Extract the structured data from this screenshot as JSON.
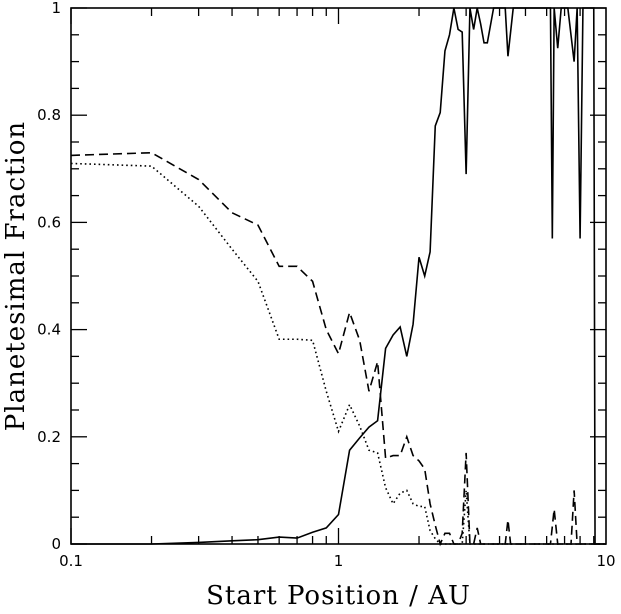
{
  "chart_data": {
    "type": "line",
    "xlabel": "Start Position / AU",
    "ylabel": "Planetesimal Fraction",
    "x_scale": "log",
    "xlim": [
      0.1,
      10
    ],
    "ylim": [
      0,
      1
    ],
    "x_ticks": [
      {
        "value": 0.1,
        "label": "0.1"
      },
      {
        "value": 1,
        "label": "1"
      },
      {
        "value": 10,
        "label": "10"
      }
    ],
    "y_ticks": [
      {
        "value": 0,
        "label": "0"
      },
      {
        "value": 0.2,
        "label": "0.2"
      },
      {
        "value": 0.4,
        "label": "0.4"
      },
      {
        "value": 0.6,
        "label": "0.6"
      },
      {
        "value": 0.8,
        "label": "0.8"
      },
      {
        "value": 1,
        "label": "1"
      }
    ],
    "grid": false,
    "legend": false,
    "series": [
      {
        "style": "solid",
        "points": [
          [
            0.1,
            0
          ],
          [
            0.2,
            0
          ],
          [
            0.3,
            0.003
          ],
          [
            0.4,
            0.006
          ],
          [
            0.5,
            0.008
          ],
          [
            0.6,
            0.013
          ],
          [
            0.7,
            0.011
          ],
          [
            0.8,
            0.022
          ],
          [
            0.9,
            0.03
          ],
          [
            1.0,
            0.055
          ],
          [
            1.1,
            0.175
          ],
          [
            1.2,
            0.198
          ],
          [
            1.3,
            0.218
          ],
          [
            1.4,
            0.23
          ],
          [
            1.5,
            0.365
          ],
          [
            1.6,
            0.39
          ],
          [
            1.7,
            0.405
          ],
          [
            1.8,
            0.35
          ],
          [
            1.9,
            0.41
          ],
          [
            2.0,
            0.535
          ],
          [
            2.1,
            0.5
          ],
          [
            2.2,
            0.545
          ],
          [
            2.3,
            0.78
          ],
          [
            2.4,
            0.805
          ],
          [
            2.5,
            0.92
          ],
          [
            2.6,
            0.95
          ],
          [
            2.7,
            1.0
          ],
          [
            2.8,
            0.96
          ],
          [
            2.9,
            0.955
          ],
          [
            3.0,
            0.69
          ],
          [
            3.1,
            1.0
          ],
          [
            3.2,
            0.96
          ],
          [
            3.3,
            1.0
          ],
          [
            3.4,
            0.97
          ],
          [
            3.5,
            0.935
          ],
          [
            3.6,
            0.935
          ],
          [
            3.8,
            1.0
          ],
          [
            4.2,
            1.0
          ],
          [
            4.3,
            0.91
          ],
          [
            4.5,
            1.0
          ],
          [
            6.2,
            1.0
          ],
          [
            6.3,
            0.57
          ],
          [
            6.4,
            1.0
          ],
          [
            6.6,
            0.925
          ],
          [
            6.8,
            1.0
          ],
          [
            7.2,
            1.0
          ],
          [
            7.6,
            0.9
          ],
          [
            7.8,
            1.0
          ],
          [
            8.0,
            0.57
          ],
          [
            8.2,
            1.0
          ],
          [
            9.0,
            1.0
          ],
          [
            9.1,
            0.0
          ],
          [
            10.0,
            0.0
          ]
        ]
      },
      {
        "style": "dashed",
        "points": [
          [
            0.1,
            0.725
          ],
          [
            0.2,
            0.73
          ],
          [
            0.3,
            0.68
          ],
          [
            0.4,
            0.618
          ],
          [
            0.5,
            0.595
          ],
          [
            0.6,
            0.518
          ],
          [
            0.7,
            0.518
          ],
          [
            0.8,
            0.49
          ],
          [
            0.9,
            0.4
          ],
          [
            1.0,
            0.355
          ],
          [
            1.1,
            0.432
          ],
          [
            1.2,
            0.38
          ],
          [
            1.3,
            0.285
          ],
          [
            1.4,
            0.34
          ],
          [
            1.5,
            0.16
          ],
          [
            1.6,
            0.165
          ],
          [
            1.7,
            0.165
          ],
          [
            1.8,
            0.2
          ],
          [
            1.9,
            0.165
          ],
          [
            2.0,
            0.155
          ],
          [
            2.1,
            0.14
          ],
          [
            2.2,
            0.075
          ],
          [
            2.3,
            0.035
          ],
          [
            2.4,
            0.0
          ],
          [
            2.5,
            0.02
          ],
          [
            2.6,
            0.02
          ],
          [
            2.7,
            0.0
          ],
          [
            2.8,
            0.0
          ],
          [
            2.9,
            0.02
          ],
          [
            3.0,
            0.17
          ],
          [
            3.1,
            0.0
          ],
          [
            3.2,
            0.0
          ],
          [
            3.3,
            0.03
          ],
          [
            3.4,
            0.0
          ],
          [
            4.2,
            0.0
          ],
          [
            4.3,
            0.045
          ],
          [
            4.4,
            0.0
          ],
          [
            6.2,
            0.0
          ],
          [
            6.4,
            0.065
          ],
          [
            6.6,
            0.0
          ],
          [
            7.4,
            0.0
          ],
          [
            7.6,
            0.1
          ],
          [
            7.8,
            0.0
          ],
          [
            10.0,
            0.0
          ]
        ]
      },
      {
        "style": "dotted",
        "points": [
          [
            0.1,
            0.71
          ],
          [
            0.2,
            0.705
          ],
          [
            0.3,
            0.63
          ],
          [
            0.4,
            0.55
          ],
          [
            0.5,
            0.49
          ],
          [
            0.6,
            0.382
          ],
          [
            0.7,
            0.382
          ],
          [
            0.8,
            0.38
          ],
          [
            0.9,
            0.285
          ],
          [
            1.0,
            0.21
          ],
          [
            1.1,
            0.26
          ],
          [
            1.2,
            0.22
          ],
          [
            1.3,
            0.175
          ],
          [
            1.4,
            0.17
          ],
          [
            1.5,
            0.105
          ],
          [
            1.6,
            0.075
          ],
          [
            1.7,
            0.095
          ],
          [
            1.8,
            0.1
          ],
          [
            1.9,
            0.075
          ],
          [
            2.0,
            0.07
          ],
          [
            2.1,
            0.07
          ],
          [
            2.2,
            0.025
          ],
          [
            2.3,
            0.01
          ],
          [
            2.4,
            0.0
          ],
          [
            2.9,
            0.0
          ],
          [
            3.0,
            0.1
          ],
          [
            3.1,
            0.0
          ],
          [
            10.0,
            0.0
          ]
        ]
      }
    ]
  }
}
